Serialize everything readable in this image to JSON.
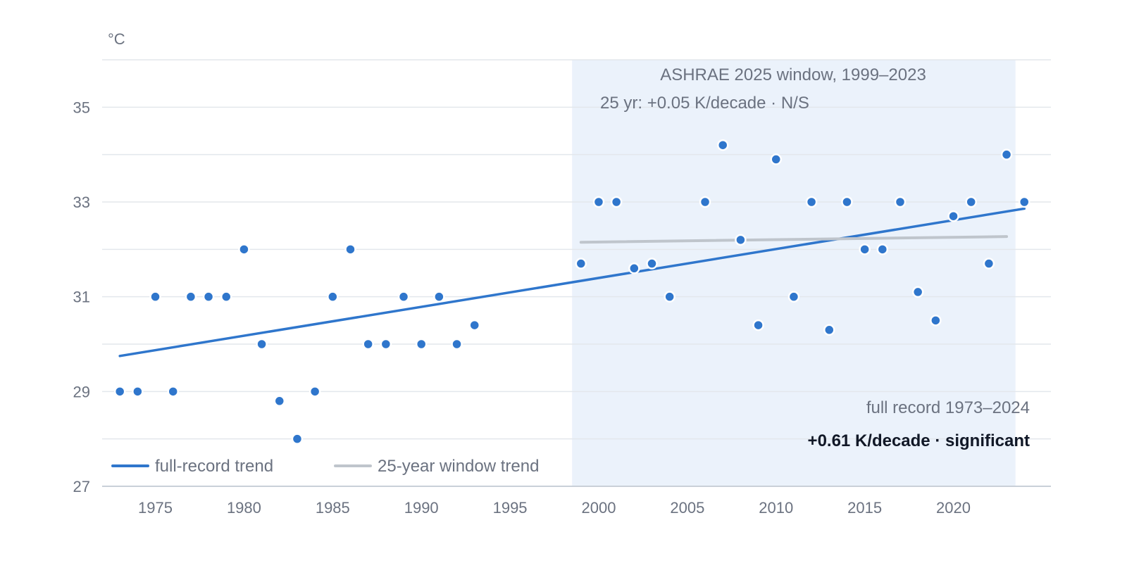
{
  "chart_data": {
    "type": "scatter",
    "unit_label": "°C",
    "x_ticks": [
      1975,
      1980,
      1985,
      1990,
      1995,
      2000,
      2005,
      2010,
      2015,
      2020
    ],
    "y_ticks": [
      27,
      29,
      31,
      33,
      35
    ],
    "xlim": [
      1972,
      2025.5
    ],
    "ylim": [
      27,
      36
    ],
    "grid": true,
    "points": [
      {
        "x": 1973,
        "y": 29.0
      },
      {
        "x": 1974,
        "y": 29.0
      },
      {
        "x": 1975,
        "y": 31.0
      },
      {
        "x": 1976,
        "y": 29.0
      },
      {
        "x": 1977,
        "y": 31.0
      },
      {
        "x": 1978,
        "y": 31.0
      },
      {
        "x": 1979,
        "y": 31.0
      },
      {
        "x": 1980,
        "y": 32.0
      },
      {
        "x": 1981,
        "y": 30.0
      },
      {
        "x": 1982,
        "y": 28.8
      },
      {
        "x": 1983,
        "y": 28.0
      },
      {
        "x": 1984,
        "y": 29.0
      },
      {
        "x": 1985,
        "y": 31.0
      },
      {
        "x": 1986,
        "y": 32.0
      },
      {
        "x": 1987,
        "y": 30.0
      },
      {
        "x": 1988,
        "y": 30.0
      },
      {
        "x": 1989,
        "y": 31.0
      },
      {
        "x": 1990,
        "y": 30.0
      },
      {
        "x": 1991,
        "y": 31.0
      },
      {
        "x": 1992,
        "y": 30.0
      },
      {
        "x": 1993,
        "y": 30.4
      },
      {
        "x": 1999,
        "y": 31.7
      },
      {
        "x": 2000,
        "y": 33.0
      },
      {
        "x": 2001,
        "y": 33.0
      },
      {
        "x": 2002,
        "y": 31.6
      },
      {
        "x": 2003,
        "y": 31.7
      },
      {
        "x": 2004,
        "y": 31.0
      },
      {
        "x": 2006,
        "y": 33.0
      },
      {
        "x": 2007,
        "y": 34.2
      },
      {
        "x": 2008,
        "y": 32.2
      },
      {
        "x": 2009,
        "y": 30.4
      },
      {
        "x": 2010,
        "y": 33.9
      },
      {
        "x": 2011,
        "y": 31.0
      },
      {
        "x": 2012,
        "y": 33.0
      },
      {
        "x": 2013,
        "y": 30.3
      },
      {
        "x": 2014,
        "y": 33.0
      },
      {
        "x": 2015,
        "y": 32.0
      },
      {
        "x": 2016,
        "y": 32.0
      },
      {
        "x": 2017,
        "y": 33.0
      },
      {
        "x": 2018,
        "y": 31.1
      },
      {
        "x": 2019,
        "y": 30.5
      },
      {
        "x": 2020,
        "y": 32.7
      },
      {
        "x": 2021,
        "y": 33.0
      },
      {
        "x": 2022,
        "y": 31.7
      },
      {
        "x": 2023,
        "y": 34.0
      },
      {
        "x": 2024,
        "y": 33.0
      }
    ],
    "trends": [
      {
        "name": "full-record trend",
        "color": "#2f76cc",
        "x": [
          1973,
          2024
        ],
        "y": [
          29.75,
          32.86
        ]
      },
      {
        "name": "25-year window trend",
        "color": "#bfc5cc",
        "x": [
          1999,
          2023
        ],
        "y": [
          32.15,
          32.27
        ]
      }
    ],
    "highlight_window": {
      "x": [
        1998.5,
        2023.5
      ],
      "color": "#ebf2fb"
    },
    "annotations": {
      "window_title": "ASHRAE 2025 window, 1999–2023",
      "window_trend": "25 yr: +0.05 K/decade · N/S",
      "full_record": "full record 1973–2024",
      "full_record_trend": "+0.61 K/decade · significant"
    },
    "legend": {
      "position": "bottom-left",
      "items": [
        {
          "label": "full-record trend",
          "color": "#2f76cc"
        },
        {
          "label": "25-year window trend",
          "color": "#bfc5cc"
        }
      ]
    }
  }
}
